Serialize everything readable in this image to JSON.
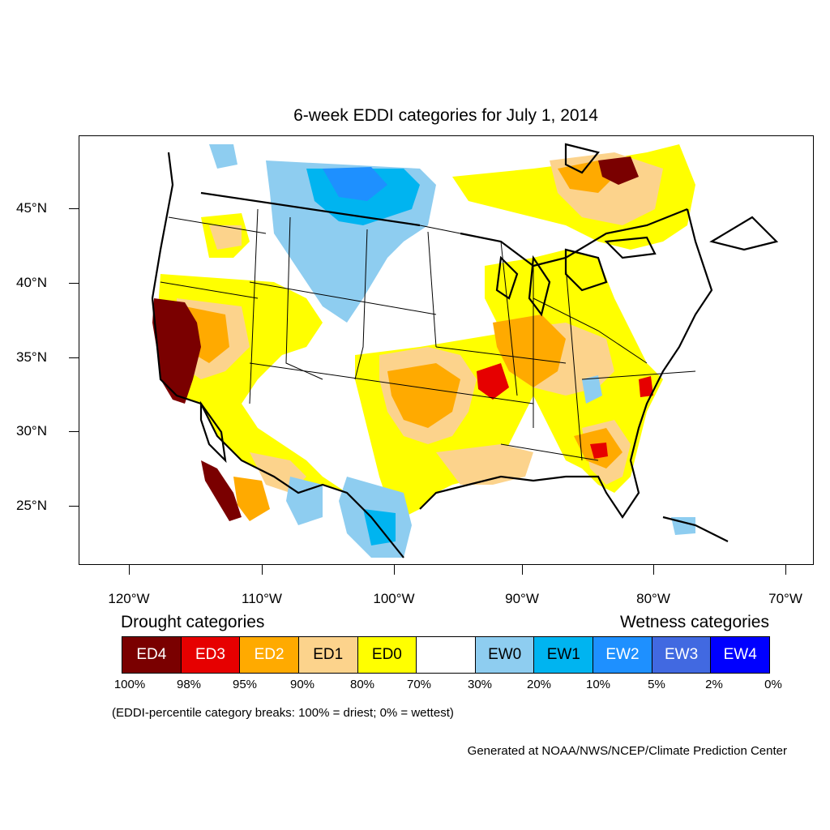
{
  "title": "6-week EDDI categories for July 1, 2014",
  "lat_labels": [
    "45°N",
    "40°N",
    "35°N",
    "30°N",
    "25°N"
  ],
  "lon_labels": [
    "120°W",
    "110°W",
    "100°W",
    "90°W",
    "80°W",
    "70°W"
  ],
  "legend": {
    "drought_heading": "Drought categories",
    "wetness_heading": "Wetness categories",
    "categories": [
      {
        "label": "ED4",
        "color": "#7a0000",
        "text_color": "#ffffff"
      },
      {
        "label": "ED3",
        "color": "#e60000",
        "text_color": "#ffffff"
      },
      {
        "label": "ED2",
        "color": "#ffaa00",
        "text_color": "#ffffff"
      },
      {
        "label": "ED1",
        "color": "#fcd38c",
        "text_color": "#000000"
      },
      {
        "label": "ED0",
        "color": "#ffff00",
        "text_color": "#000000"
      },
      {
        "label": "",
        "color": "#ffffff",
        "text_color": "#000000"
      },
      {
        "label": "EW0",
        "color": "#8ecdf0",
        "text_color": "#000000"
      },
      {
        "label": "EW1",
        "color": "#00b4f0",
        "text_color": "#000000"
      },
      {
        "label": "EW2",
        "color": "#1e90ff",
        "text_color": "#ffffff"
      },
      {
        "label": "EW3",
        "color": "#4169e1",
        "text_color": "#ffffff"
      },
      {
        "label": "EW4",
        "color": "#0000ff",
        "text_color": "#ffffff"
      }
    ],
    "percentiles": [
      "100%",
      "98%",
      "95%",
      "90%",
      "80%",
      "70%",
      "30%",
      "20%",
      "10%",
      "5%",
      "2%",
      "0%"
    ],
    "note": "(EDDI-percentile category breaks: 100% = driest; 0% = wettest)"
  },
  "credit": "Generated at NOAA/NWS/NCEP/Climate Prediction Center"
}
